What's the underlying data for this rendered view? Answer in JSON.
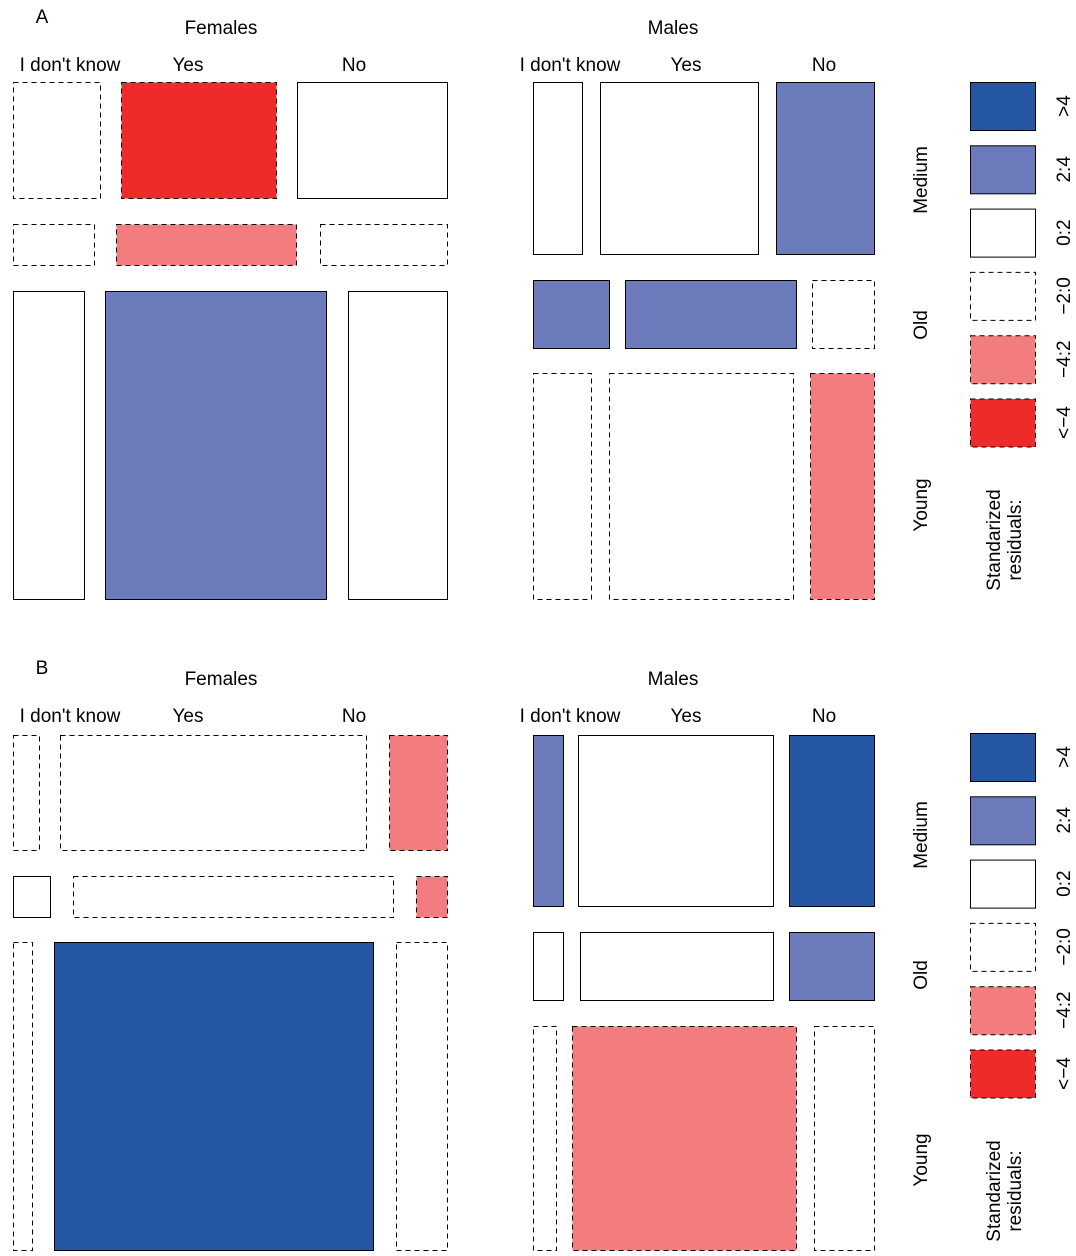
{
  "panels": [
    {
      "label": "A",
      "rows": [
        "Medium",
        "Old",
        "Young"
      ],
      "groups": [
        {
          "title": "Females",
          "columns": [
            "I don't know",
            "Yes",
            "No"
          ],
          "cells": [
            [
              "−2:0",
              "<−4",
              "0:2"
            ],
            [
              "−2:0",
              "−4:2",
              "−2:0"
            ],
            [
              "0:2",
              "2:4",
              "0:2"
            ]
          ]
        },
        {
          "title": "Males",
          "columns": [
            "I don't know",
            "Yes",
            "No"
          ],
          "cells": [
            [
              "0:2",
              "0:2",
              "2:4"
            ],
            [
              "2:4",
              "2:4",
              "−2:0"
            ],
            [
              "−2:0",
              "−2:0",
              "−4:2"
            ]
          ]
        }
      ],
      "legend": {
        "title": [
          "Standarized",
          "residuals:"
        ],
        "items": [
          ">4",
          "2:4",
          "0:2",
          "−2:0",
          "−4:2",
          "<−4"
        ]
      }
    },
    {
      "label": "B",
      "rows": [
        "Medium",
        "Old",
        "Young"
      ],
      "groups": [
        {
          "title": "Females",
          "columns": [
            "I don't know",
            "Yes",
            "No"
          ],
          "cells": [
            [
              "−2:0",
              "−2:0",
              "−4:2"
            ],
            [
              "0:2",
              "−2:0",
              "−4:2"
            ],
            [
              "−2:0",
              ">4",
              "−2:0"
            ]
          ]
        },
        {
          "title": "Males",
          "columns": [
            "I don't know",
            "Yes",
            "No"
          ],
          "cells": [
            [
              "2:4",
              "0:2",
              ">4"
            ],
            [
              "0:2",
              "0:2",
              "2:4"
            ],
            [
              "−2:0",
              "−4:2",
              "−2:0"
            ]
          ]
        }
      ],
      "legend": {
        "title": [
          "Standarized",
          "residuals:"
        ],
        "items": [
          ">4",
          "2:4",
          "0:2",
          "−2:0",
          "−4:2",
          "<−4"
        ]
      }
    }
  ]
}
